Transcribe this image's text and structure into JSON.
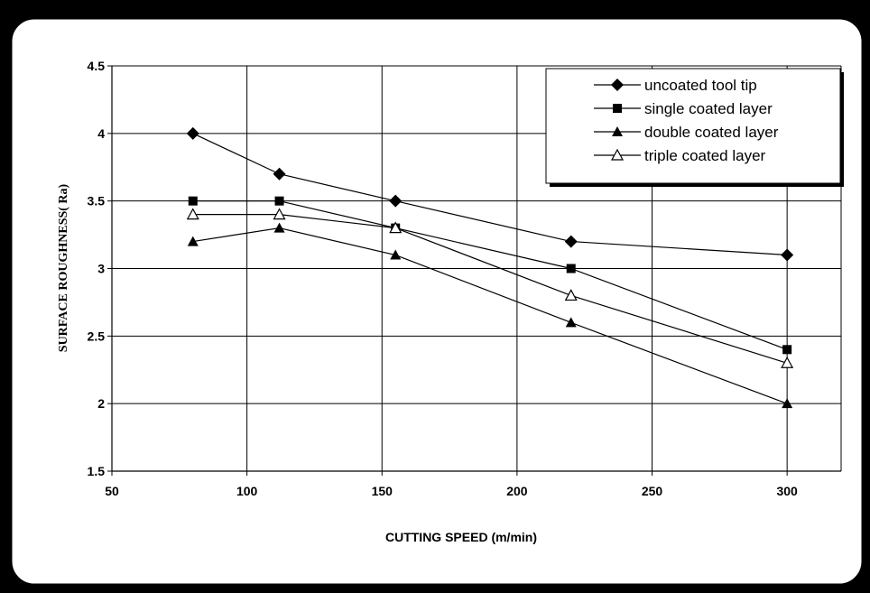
{
  "chart_data": {
    "type": "line",
    "title": "",
    "xlabel": "CUTTING SPEED (m/min)",
    "ylabel": "SURFACE ROUGHNESS( Ra)",
    "xlim": [
      50,
      320
    ],
    "ylim": [
      1.5,
      4.5
    ],
    "xticks": [
      "50",
      "100",
      "150",
      "200",
      "250",
      "300"
    ],
    "yticks": [
      "1.5",
      "2",
      "2.5",
      "3",
      "3.5",
      "4",
      "4.5"
    ],
    "grid": true,
    "legend_position": "top-right",
    "x": [
      80,
      112,
      155,
      220,
      300
    ],
    "series": [
      {
        "name": "uncoated tool  tip",
        "marker": "diamond",
        "values": [
          4.0,
          3.7,
          3.5,
          3.2,
          3.1
        ]
      },
      {
        "name": "single coated layer",
        "marker": "square",
        "values": [
          3.5,
          3.5,
          3.3,
          3.0,
          2.4
        ]
      },
      {
        "name": "double coated layer",
        "marker": "triangle",
        "values": [
          3.2,
          3.3,
          3.1,
          2.6,
          2.0
        ]
      },
      {
        "name": "triple coated layer",
        "marker": "triangle-open",
        "values": [
          3.4,
          3.4,
          3.3,
          2.8,
          2.3
        ]
      }
    ]
  }
}
